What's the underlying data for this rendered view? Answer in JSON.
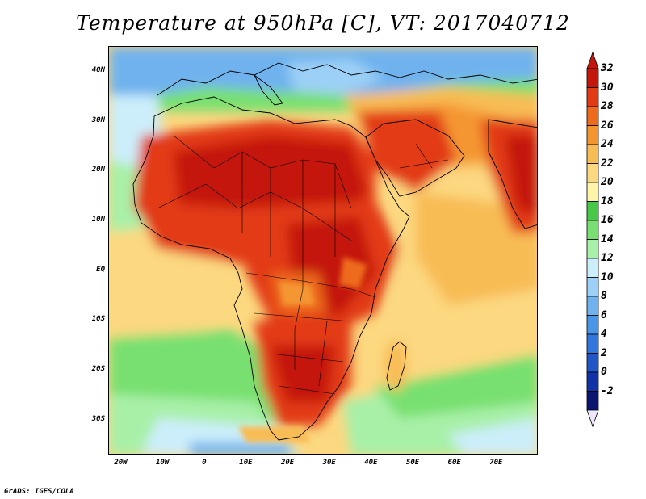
{
  "title": "Temperature at 950hPa [C], VT: 2017040712",
  "credit": "GrADS: IGES/COLA",
  "map": {
    "projection": "latlon",
    "lon_range": [
      -23,
      80
    ],
    "lat_range": [
      -37,
      45
    ],
    "variable": "temperature",
    "level": "950hPa",
    "units": "C",
    "valid_time": "2017040712",
    "y_ticks": [
      {
        "lat": 40,
        "label": "40N"
      },
      {
        "lat": 30,
        "label": "30N"
      },
      {
        "lat": 20,
        "label": "20N"
      },
      {
        "lat": 10,
        "label": "10N"
      },
      {
        "lat": 0,
        "label": "EQ"
      },
      {
        "lat": -10,
        "label": "10S"
      },
      {
        "lat": -20,
        "label": "20S"
      },
      {
        "lat": -30,
        "label": "30S"
      }
    ],
    "x_ticks": [
      {
        "lon": -20,
        "label": "20W"
      },
      {
        "lon": -10,
        "label": "10W"
      },
      {
        "lon": 0,
        "label": "0"
      },
      {
        "lon": 10,
        "label": "10E"
      },
      {
        "lon": 20,
        "label": "20E"
      },
      {
        "lon": 30,
        "label": "30E"
      },
      {
        "lon": 40,
        "label": "40E"
      },
      {
        "lon": 50,
        "label": "50E"
      },
      {
        "lon": 60,
        "label": "60E"
      },
      {
        "lon": 70,
        "label": "70E"
      }
    ]
  },
  "colorbar": {
    "levels": [
      -2,
      0,
      2,
      4,
      6,
      8,
      10,
      12,
      14,
      16,
      18,
      20,
      22,
      24,
      26,
      28,
      30,
      32
    ],
    "labels": [
      "32",
      "30",
      "28",
      "26",
      "24",
      "22",
      "20",
      "18",
      "16",
      "14",
      "12",
      "10",
      "8",
      "6",
      "4",
      "2",
      "0",
      "-2"
    ],
    "colors": [
      "#0a1670",
      "#1232a8",
      "#2056c8",
      "#3076dc",
      "#4a96e6",
      "#6fb2ee",
      "#9cd0f6",
      "#cceefa",
      "#a8f0a8",
      "#78e070",
      "#48c848",
      "#fff4a8",
      "#fcd880",
      "#f8bc54",
      "#f49630",
      "#ee6a1c",
      "#e23a12",
      "#c4160a",
      "#eee6fa"
    ]
  },
  "regions": {
    "sahara_north_africa": 31,
    "sahel_west_africa": 31,
    "east_africa": 30,
    "arabian_peninsula": 30,
    "india": 30,
    "congo_basin": 28,
    "southern_africa_interior": 29,
    "mediterranean": 16,
    "southern_ocean": 13,
    "equatorial_atlantic": 23,
    "indian_ocean": 24,
    "madagascar": 24
  }
}
